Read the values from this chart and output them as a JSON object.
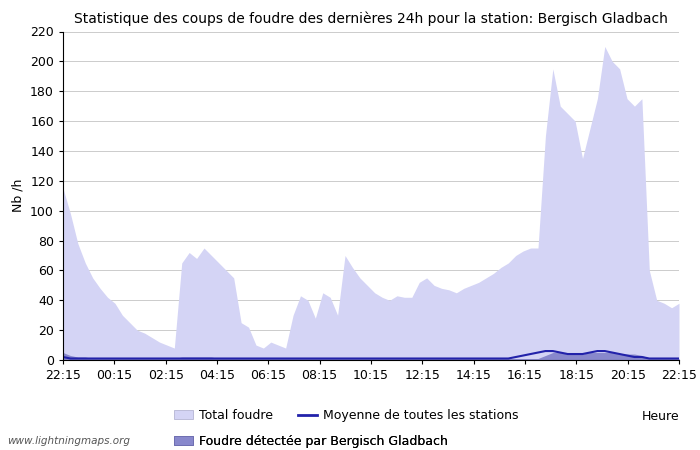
{
  "title": "Statistique des coups de foudre des dernières 24h pour la station: Bergisch Gladbach",
  "xlabel": "Heure",
  "ylabel": "Nb /h",
  "watermark": "www.lightningmaps.org",
  "ylim": [
    0,
    220
  ],
  "yticks": [
    0,
    20,
    40,
    60,
    80,
    100,
    120,
    140,
    160,
    180,
    200,
    220
  ],
  "x_labels": [
    "22:15",
    "00:15",
    "02:15",
    "04:15",
    "06:15",
    "08:15",
    "10:15",
    "12:15",
    "14:15",
    "16:15",
    "18:15",
    "20:15",
    "22:15"
  ],
  "legend": {
    "total_foudre_label": "Total foudre",
    "total_foudre_color": "#d4d4f5",
    "bergisch_label": "Foudre détectée par Bergisch Gladbach",
    "bergisch_color": "#8888cc",
    "moyenne_label": "Moyenne de toutes les stations",
    "moyenne_color": "#2222aa"
  },
  "total_foudre": [
    115,
    98,
    78,
    65,
    55,
    48,
    42,
    38,
    30,
    25,
    20,
    18,
    15,
    12,
    10,
    8,
    65,
    72,
    68,
    75,
    70,
    65,
    60,
    55,
    25,
    22,
    10,
    8,
    12,
    10,
    8,
    30,
    43,
    40,
    28,
    45,
    42,
    30,
    70,
    62,
    55,
    50,
    45,
    42,
    40,
    43,
    42,
    42,
    52,
    55,
    50,
    48,
    47,
    45,
    48,
    50,
    52,
    55,
    58,
    62,
    65,
    70,
    73,
    75,
    75,
    150,
    195,
    170,
    165,
    160,
    135,
    155,
    175,
    210,
    200,
    195,
    175,
    170,
    175,
    60,
    40,
    38,
    35,
    38
  ],
  "bergisch_gladbach": [
    5,
    3,
    2,
    2,
    1,
    1,
    1,
    1,
    1,
    1,
    1,
    1,
    1,
    1,
    1,
    1,
    2,
    2,
    2,
    2,
    2,
    1,
    1,
    1,
    1,
    1,
    1,
    1,
    1,
    1,
    1,
    1,
    1,
    1,
    1,
    1,
    1,
    1,
    1,
    1,
    1,
    1,
    1,
    1,
    1,
    1,
    1,
    1,
    1,
    1,
    1,
    1,
    1,
    1,
    1,
    1,
    1,
    1,
    1,
    1,
    1,
    1,
    1,
    1,
    1,
    3,
    5,
    5,
    4,
    4,
    4,
    5,
    5,
    5,
    5,
    4,
    4,
    4,
    3,
    1,
    1,
    1,
    1,
    1
  ],
  "moyenne": [
    2,
    1,
    1,
    1,
    1,
    1,
    1,
    1,
    1,
    1,
    1,
    1,
    1,
    1,
    1,
    1,
    1,
    1,
    1,
    1,
    1,
    1,
    1,
    1,
    1,
    1,
    1,
    1,
    1,
    1,
    1,
    1,
    1,
    1,
    1,
    1,
    1,
    1,
    1,
    1,
    1,
    1,
    1,
    1,
    1,
    1,
    1,
    1,
    1,
    1,
    1,
    1,
    1,
    1,
    1,
    1,
    1,
    1,
    1,
    1,
    1,
    2,
    3,
    4,
    5,
    6,
    6,
    5,
    4,
    4,
    4,
    5,
    6,
    6,
    5,
    4,
    3,
    2,
    2,
    1,
    1,
    1,
    1,
    1
  ],
  "n_points": 84
}
